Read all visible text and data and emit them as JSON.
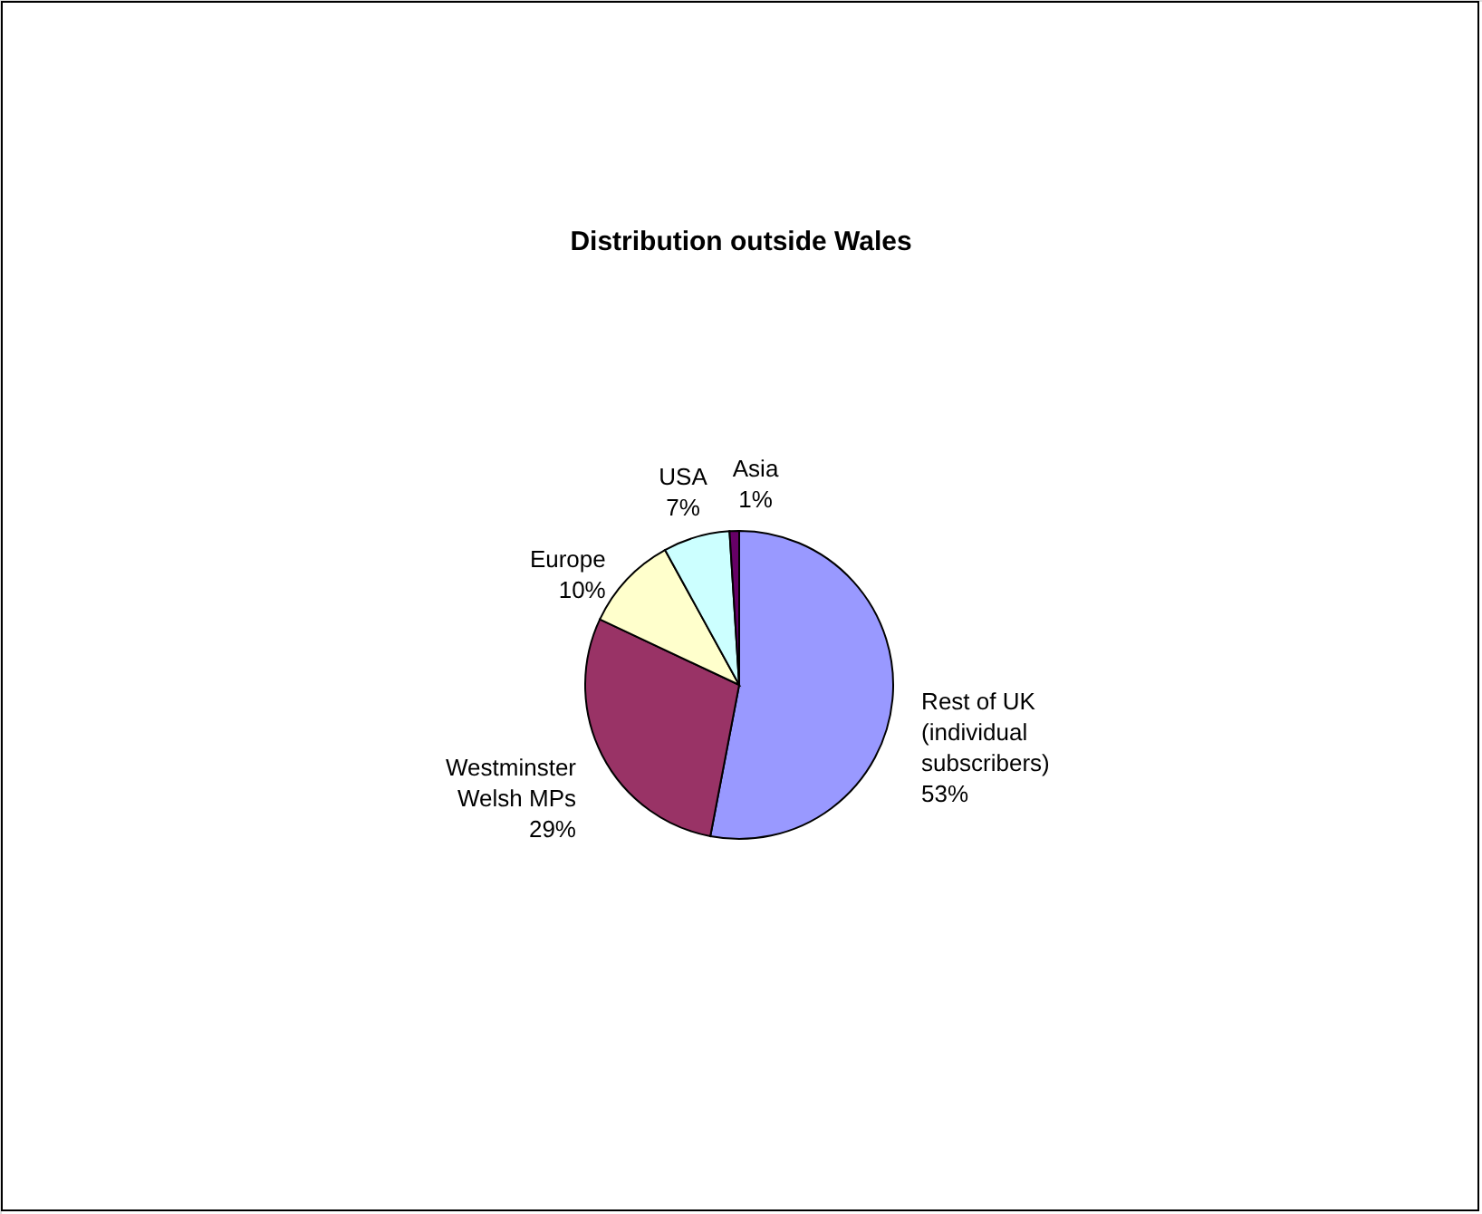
{
  "chart_data": {
    "type": "pie",
    "title": "Distribution outside Wales",
    "categories": [
      "Rest of UK (individual subscribers)",
      "Westminster Welsh MPs",
      "Europe",
      "USA",
      "Asia"
    ],
    "values": [
      53,
      29,
      10,
      7,
      1
    ],
    "colors": [
      "#9999ff",
      "#993366",
      "#ffffcc",
      "#ccffff",
      "#660066"
    ],
    "value_labels": [
      "53%",
      "29%",
      "10%",
      "7%",
      "1%"
    ]
  }
}
